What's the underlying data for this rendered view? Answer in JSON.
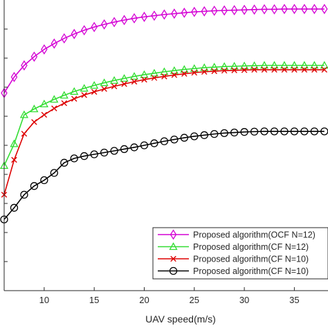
{
  "chart_data": {
    "type": "line",
    "xlabel": "UAV speed(m/s)",
    "ylabel": "",
    "xlim": [
      6,
      38.5
    ],
    "ylim": [
      0,
      10
    ],
    "xticks": [
      10,
      15,
      20,
      25,
      30,
      35
    ],
    "x": [
      6,
      7,
      8,
      9,
      10,
      11,
      12,
      13,
      14,
      15,
      16,
      17,
      18,
      19,
      20,
      21,
      22,
      23,
      24,
      25,
      26,
      27,
      28,
      29,
      30,
      31,
      32,
      33,
      34,
      35,
      36,
      37,
      38
    ],
    "legend": {
      "location": "bottom-right",
      "boxed": true
    },
    "grid": false,
    "series": [
      {
        "name": "Proposed algorithm(OCF N=12)",
        "color": "#d400d4",
        "marker": "diamond",
        "values": [
          6.8,
          7.35,
          7.75,
          8.05,
          8.3,
          8.5,
          8.68,
          8.83,
          8.96,
          9.07,
          9.16,
          9.24,
          9.31,
          9.37,
          9.42,
          9.46,
          9.5,
          9.53,
          9.56,
          9.59,
          9.61,
          9.63,
          9.64,
          9.65,
          9.66,
          9.67,
          9.68,
          9.68,
          9.69,
          9.69,
          9.69,
          9.69,
          9.69
        ]
      },
      {
        "name": "Proposed algorithm(CF N=12)",
        "color": "#33dd33",
        "marker": "triangle",
        "values": [
          4.3,
          5.05,
          6.05,
          6.25,
          6.42,
          6.58,
          6.72,
          6.85,
          6.96,
          7.06,
          7.15,
          7.23,
          7.3,
          7.37,
          7.43,
          7.48,
          7.53,
          7.57,
          7.61,
          7.64,
          7.67,
          7.69,
          7.71,
          7.72,
          7.73,
          7.74,
          7.75,
          7.75,
          7.75,
          7.75,
          7.75,
          7.75,
          7.75
        ]
      },
      {
        "name": "Proposed algorithm(CF N=10)",
        "color": "#dd0000",
        "marker": "x",
        "values": [
          3.3,
          4.5,
          5.4,
          5.8,
          6.05,
          6.27,
          6.45,
          6.6,
          6.73,
          6.84,
          6.94,
          7.03,
          7.11,
          7.19,
          7.26,
          7.32,
          7.37,
          7.42,
          7.46,
          7.5,
          7.53,
          7.55,
          7.57,
          7.58,
          7.59,
          7.6,
          7.6,
          7.6,
          7.6,
          7.6,
          7.6,
          7.6,
          7.6
        ]
      },
      {
        "name": "Proposed algorithm(CF N=10)",
        "color": "#000000",
        "marker": "circle",
        "values": [
          2.45,
          2.85,
          3.3,
          3.6,
          3.8,
          4.05,
          4.4,
          4.55,
          4.63,
          4.69,
          4.75,
          4.81,
          4.87,
          4.93,
          5.0,
          5.07,
          5.14,
          5.2,
          5.26,
          5.31,
          5.35,
          5.39,
          5.42,
          5.44,
          5.46,
          5.47,
          5.48,
          5.48,
          5.48,
          5.48,
          5.48,
          5.48,
          5.48
        ]
      }
    ]
  }
}
